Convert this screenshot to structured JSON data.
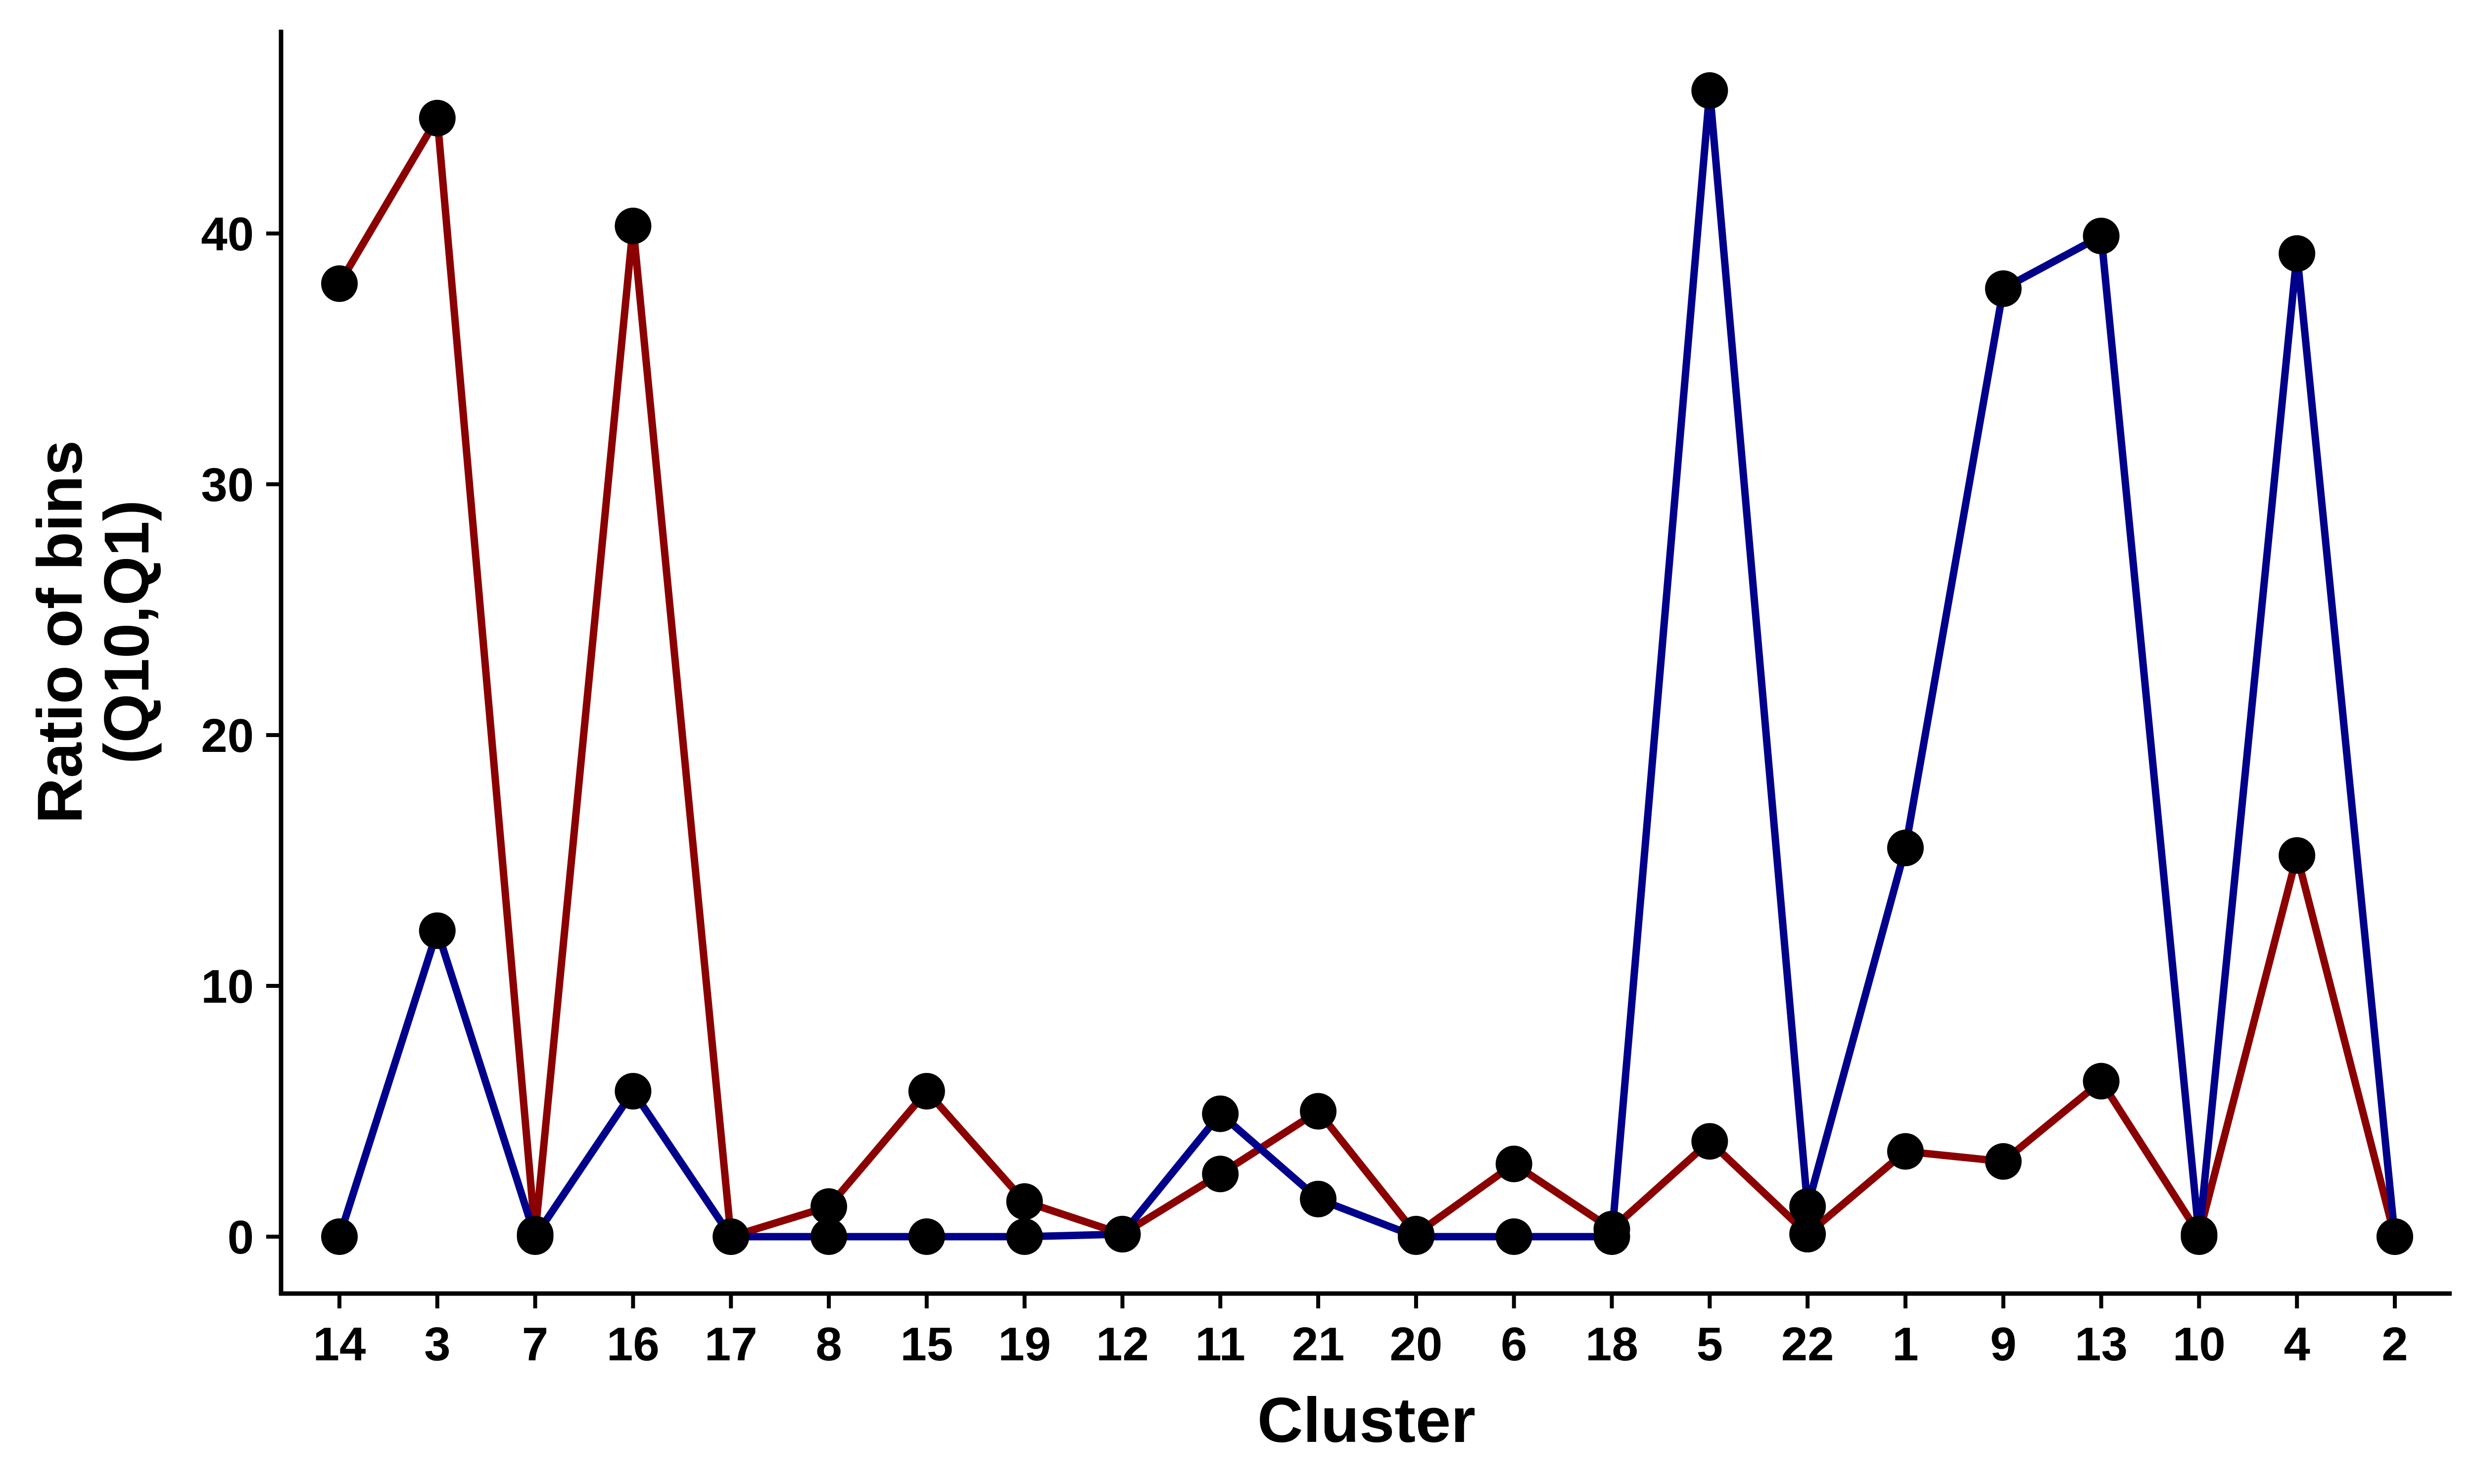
{
  "chart_data": {
    "type": "line",
    "categories": [
      "14",
      "3",
      "7",
      "16",
      "17",
      "8",
      "15",
      "19",
      "12",
      "11",
      "21",
      "20",
      "6",
      "18",
      "5",
      "22",
      "1",
      "9",
      "13",
      "10",
      "4",
      "2"
    ],
    "series": [
      {
        "color": "#8b0000",
        "values": [
          38.0,
          44.6,
          0.1,
          40.3,
          0.0,
          1.2,
          5.8,
          1.4,
          0.1,
          2.5,
          5.0,
          0.1,
          2.9,
          0.3,
          3.8,
          0.1,
          3.4,
          3.0,
          6.2,
          0.1,
          15.2,
          0.0
        ]
      },
      {
        "color": "#00008b",
        "values": [
          0.0,
          12.2,
          0.0,
          5.8,
          0.0,
          0.0,
          0.0,
          0.0,
          0.1,
          4.9,
          1.5,
          0.0,
          0.0,
          0.0,
          45.7,
          1.2,
          15.5,
          37.8,
          39.9,
          0.0,
          39.2,
          0.0
        ]
      }
    ],
    "marker_color": "#000000",
    "xlabel": "Cluster",
    "ylabel": [
      "Ratio of bins",
      "(Q10,Q1)"
    ],
    "yticks": [
      0,
      10,
      20,
      30,
      40
    ],
    "ylim": [
      -2.3,
      48
    ],
    "grid": false,
    "legend": "none"
  }
}
